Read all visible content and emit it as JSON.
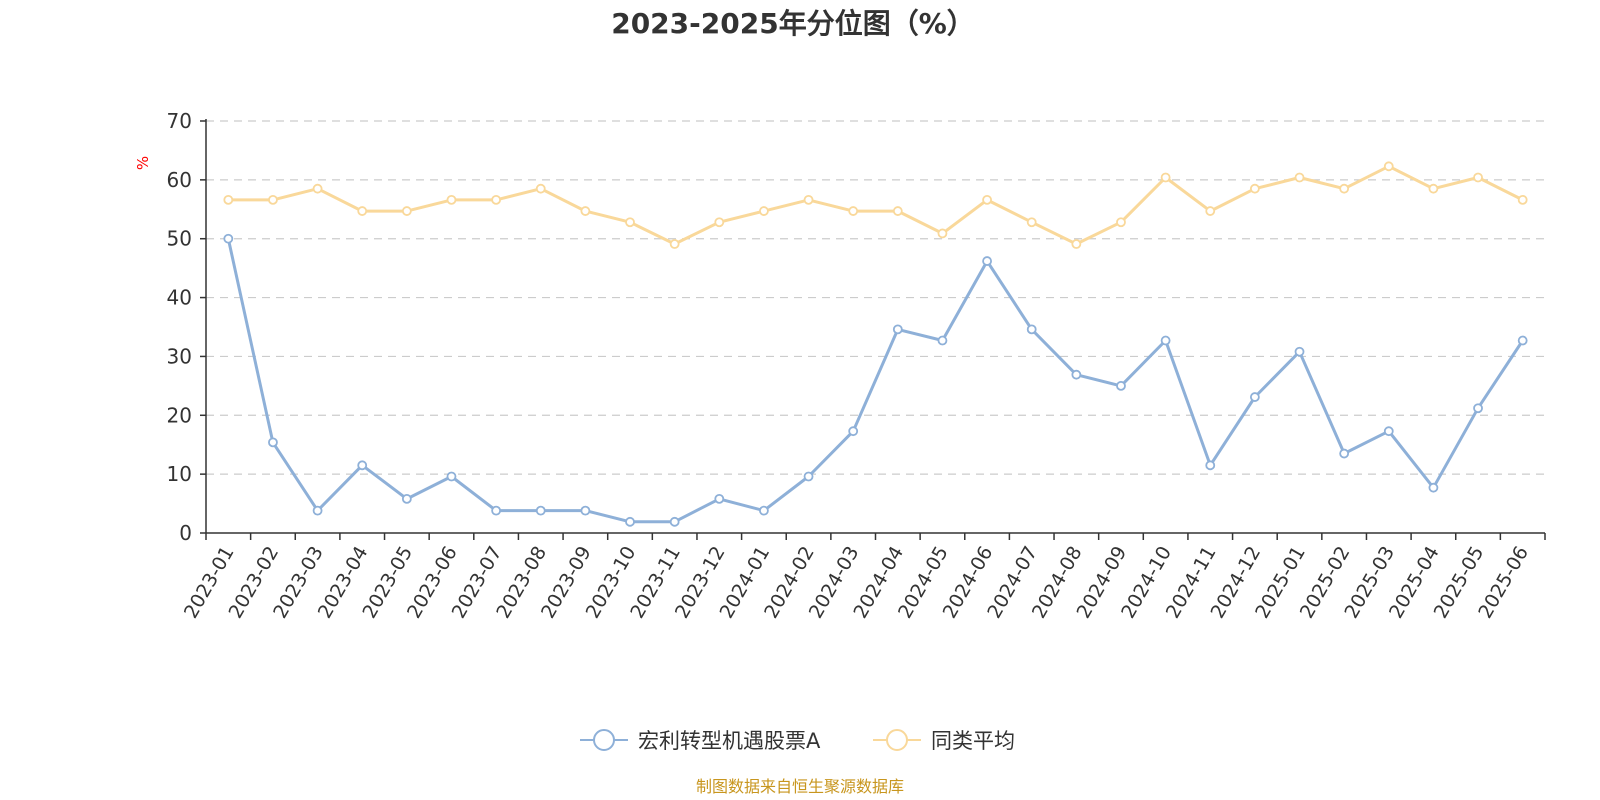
{
  "chart_data": {
    "type": "line",
    "title": "2023-2025年分位图（%）",
    "unit": "%",
    "ylim": [
      0,
      70
    ],
    "yticks": [
      0,
      10,
      20,
      30,
      40,
      50,
      60,
      70
    ],
    "grid": true,
    "legend_position": "bottom-center",
    "categories": [
      "2023-01",
      "2023-02",
      "2023-03",
      "2023-04",
      "2023-05",
      "2023-06",
      "2023-07",
      "2023-08",
      "2023-09",
      "2023-10",
      "2023-11",
      "2023-12",
      "2024-01",
      "2024-02",
      "2024-03",
      "2024-04",
      "2024-05",
      "2024-06",
      "2024-07",
      "2024-08",
      "2024-09",
      "2024-10",
      "2024-11",
      "2024-12",
      "2025-01",
      "2025-02",
      "2025-03",
      "2025-04",
      "2025-05",
      "2025-06"
    ],
    "series": [
      {
        "name": "宏利转型机遇股票A",
        "color": "#8eb0d8",
        "values": [
          50,
          15.4,
          3.8,
          11.5,
          5.8,
          9.6,
          3.8,
          3.8,
          3.8,
          1.9,
          1.9,
          5.8,
          3.8,
          9.6,
          17.3,
          34.6,
          32.7,
          46.2,
          34.6,
          26.9,
          25.0,
          32.7,
          11.5,
          23.1,
          30.8,
          13.5,
          17.3,
          7.7,
          21.2,
          32.7
        ]
      },
      {
        "name": "同类平均",
        "color": "#f9d89a",
        "values": [
          56.6,
          56.6,
          58.5,
          54.7,
          54.7,
          56.6,
          56.6,
          58.5,
          54.7,
          52.8,
          49.1,
          52.8,
          54.7,
          56.6,
          54.7,
          54.7,
          50.9,
          56.6,
          52.8,
          49.1,
          52.8,
          60.4,
          54.7,
          58.5,
          60.4,
          58.5,
          62.3,
          58.5,
          60.4,
          56.6
        ]
      }
    ]
  },
  "footer": {
    "source": "制图数据来自恒生聚源数据库"
  }
}
